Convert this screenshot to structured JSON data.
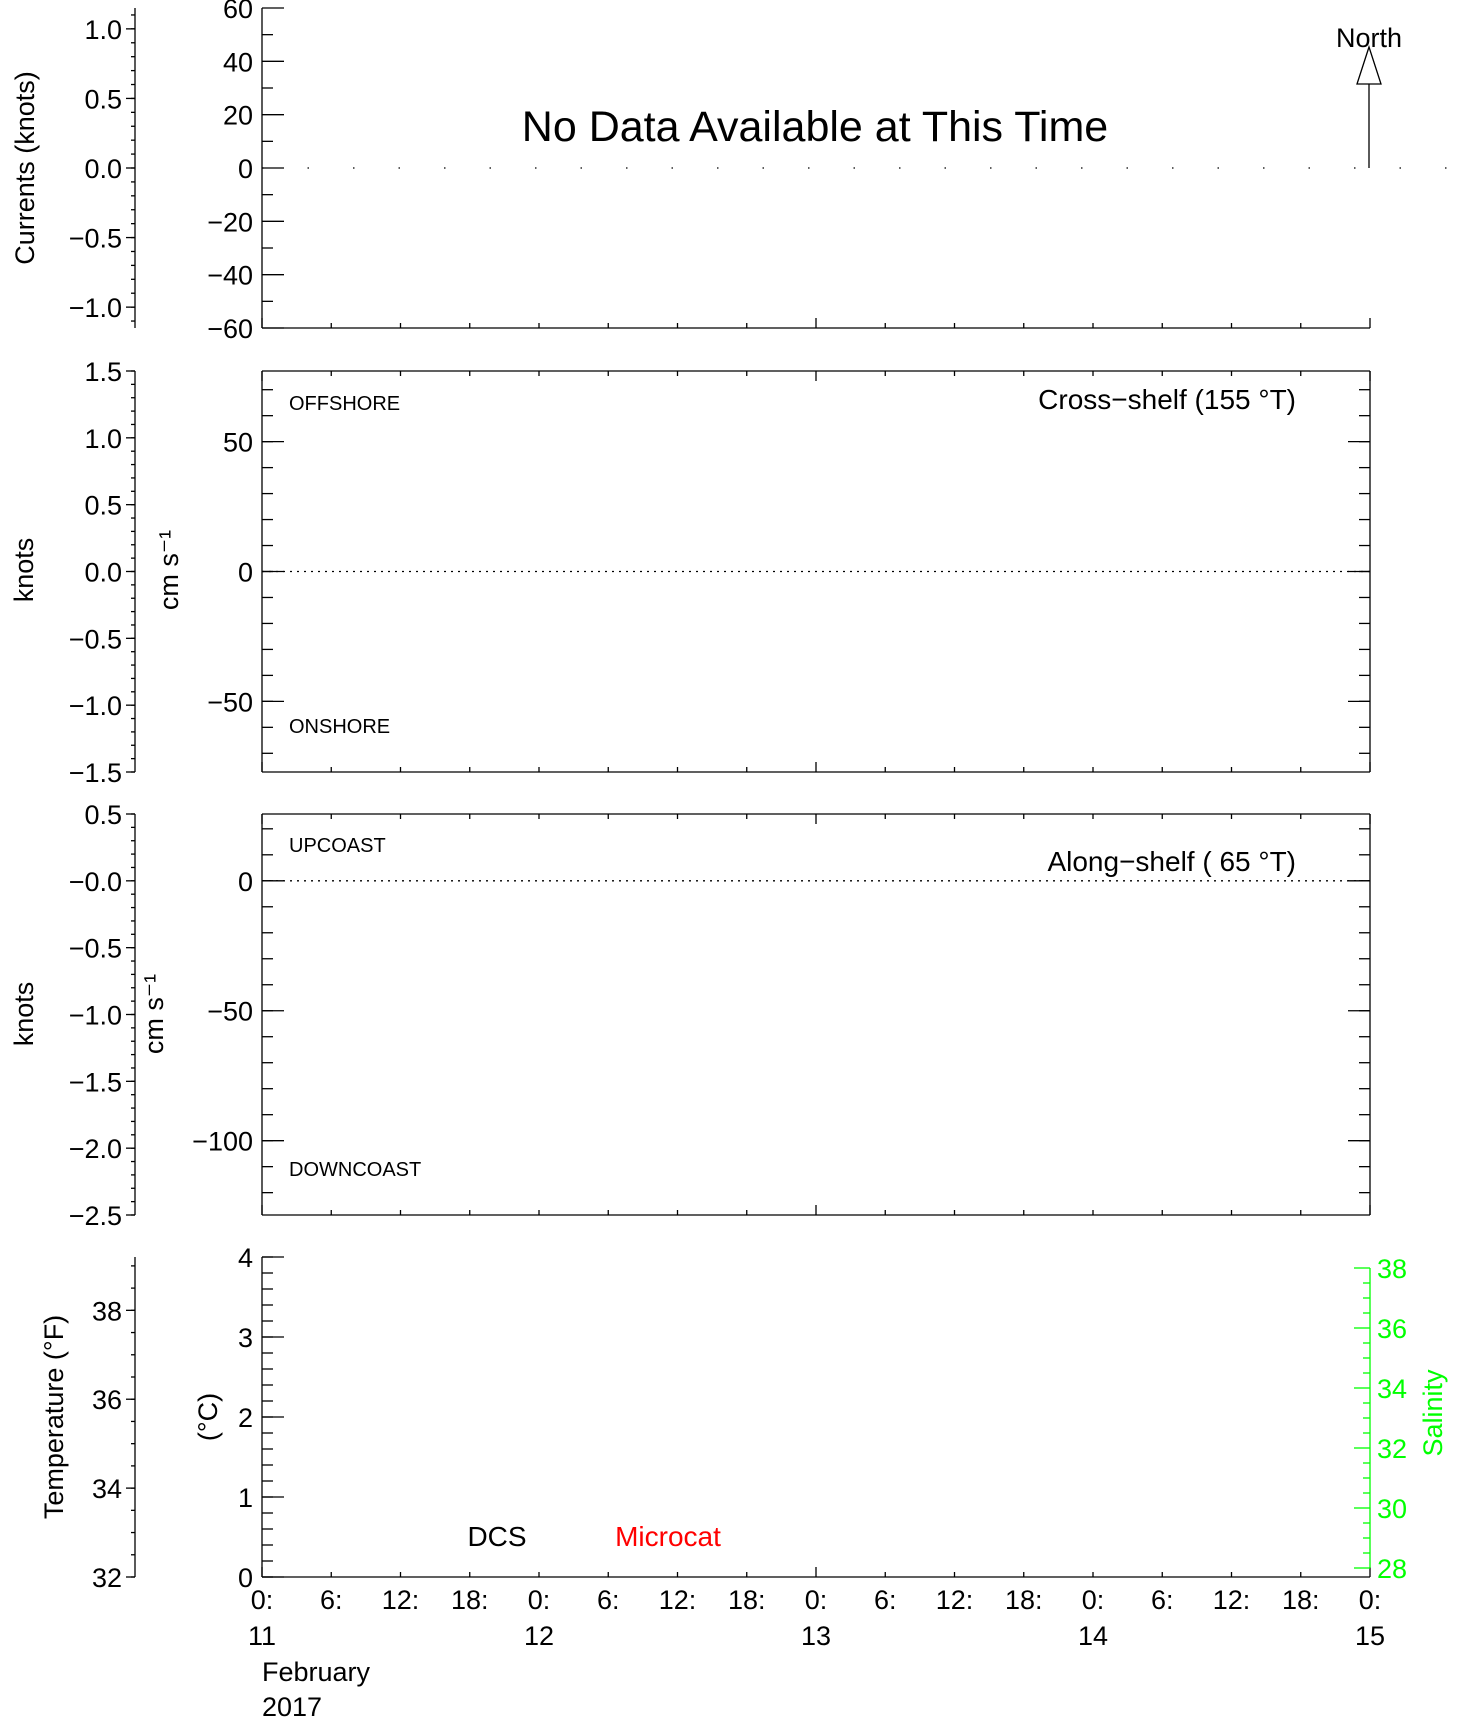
{
  "message": "No Data Available at This Time",
  "north_label": "North",
  "colors": {
    "axis": "#000000",
    "salinity": "#00ff00",
    "microcat": "#ff0000",
    "dcs": "#000000"
  },
  "panels": {
    "currents": {
      "left_axis_label": "Currents (knots)",
      "left_ticks": [
        {
          "v": 1.0,
          "t": "1.0"
        },
        {
          "v": 0.5,
          "t": "0.5"
        },
        {
          "v": 0.0,
          "t": "0.0"
        },
        {
          "v": -0.5,
          "t": "−0.5"
        },
        {
          "v": -1.0,
          "t": "−1.0"
        }
      ],
      "left_range": [
        -1.15,
        1.15
      ],
      "right_ticks": [
        {
          "v": 60,
          "t": "60"
        },
        {
          "v": 40,
          "t": "40"
        },
        {
          "v": 20,
          "t": "20"
        },
        {
          "v": 0,
          "t": "0"
        },
        {
          "v": -20,
          "t": "−20"
        },
        {
          "v": -40,
          "t": "−40"
        },
        {
          "v": -60,
          "t": "−60"
        }
      ],
      "right_range": [
        -60,
        60
      ]
    },
    "cross": {
      "title": "Cross−shelf (155 °T)",
      "top_label": "OFFSHORE",
      "bottom_label": "ONSHORE",
      "knots_label": "knots",
      "cms_label": "cm s⁻¹",
      "left_ticks": [
        {
          "v": 1.5,
          "t": "1.5"
        },
        {
          "v": 1.0,
          "t": "1.0"
        },
        {
          "v": 0.5,
          "t": "0.5"
        },
        {
          "v": 0.0,
          "t": "0.0"
        },
        {
          "v": -0.5,
          "t": "−0.5"
        },
        {
          "v": -1.0,
          "t": "−1.0"
        },
        {
          "v": -1.5,
          "t": "−1.5"
        }
      ],
      "left_range": [
        -1.5,
        1.5
      ],
      "right_ticks": [
        {
          "v": 50,
          "t": "50"
        },
        {
          "v": 0,
          "t": "0"
        },
        {
          "v": -50,
          "t": "−50"
        }
      ],
      "right_range": [
        -77.2,
        77.2
      ]
    },
    "along": {
      "title": "Along−shelf ( 65 °T)",
      "top_label": "UPCOAST",
      "bottom_label": "DOWNCOAST",
      "knots_label": "knots",
      "cms_label": "cm s⁻¹",
      "left_ticks": [
        {
          "v": 0.5,
          "t": "0.5"
        },
        {
          "v": 0.0,
          "t": "−0.0"
        },
        {
          "v": -0.5,
          "t": "−0.5"
        },
        {
          "v": -1.0,
          "t": "−1.0"
        },
        {
          "v": -1.5,
          "t": "−1.5"
        },
        {
          "v": -2.0,
          "t": "−2.0"
        },
        {
          "v": -2.5,
          "t": "−2.5"
        }
      ],
      "left_range": [
        -2.5,
        0.5
      ],
      "right_ticks": [
        {
          "v": 0,
          "t": "0"
        },
        {
          "v": -50,
          "t": "−50"
        },
        {
          "v": -100,
          "t": "−100"
        }
      ],
      "right_range": [
        -128.6,
        25.7
      ]
    },
    "temperature": {
      "left_axis_label": "Temperature (°F)",
      "celsius_label": "(°C)",
      "salinity_label": "Salinity",
      "dcs_label": "DCS",
      "microcat_label": "Microcat",
      "f_ticks": [
        {
          "v": 38,
          "t": "38"
        },
        {
          "v": 36,
          "t": "36"
        },
        {
          "v": 34,
          "t": "34"
        },
        {
          "v": 32,
          "t": "32"
        }
      ],
      "f_range": [
        32,
        39.2
      ],
      "c_ticks": [
        {
          "v": 4,
          "t": "4"
        },
        {
          "v": 3,
          "t": "3"
        },
        {
          "v": 2,
          "t": "2"
        },
        {
          "v": 1,
          "t": "1"
        },
        {
          "v": 0,
          "t": "0"
        }
      ],
      "c_range": [
        0,
        4
      ],
      "s_ticks": [
        {
          "v": 38,
          "t": "38"
        },
        {
          "v": 36,
          "t": "36"
        },
        {
          "v": 34,
          "t": "34"
        },
        {
          "v": 32,
          "t": "32"
        },
        {
          "v": 30,
          "t": "30"
        },
        {
          "v": 28,
          "t": "28"
        }
      ],
      "s_range": [
        28,
        38
      ]
    }
  },
  "x_axis": {
    "hour_labels": [
      "0:",
      "6:",
      "12:",
      "18:",
      "0:",
      "6:",
      "12:",
      "18:",
      "0:",
      "6:",
      "12:",
      "18:",
      "0:",
      "6:",
      "12:",
      "18:",
      "0:"
    ],
    "day_labels": [
      "11",
      "12",
      "13",
      "14",
      "15"
    ],
    "month": "February",
    "year": "2017"
  },
  "chart_data": [
    {
      "type": "line",
      "title": "No Data Available at This Time",
      "ylabel": "Currents (knots)",
      "ylim": [
        -1.15,
        1.15
      ],
      "series": []
    },
    {
      "type": "line",
      "title": "Cross−shelf (155 °T)",
      "ylabel": "knots",
      "ylim": [
        -1.5,
        1.5
      ],
      "series": []
    },
    {
      "type": "line",
      "title": "Along−shelf ( 65 °T)",
      "ylabel": "knots",
      "ylim": [
        -2.5,
        0.5
      ],
      "series": []
    },
    {
      "type": "line",
      "ylabel": "Temperature (°F)",
      "ylim": [
        32,
        39.2
      ],
      "series": []
    }
  ]
}
